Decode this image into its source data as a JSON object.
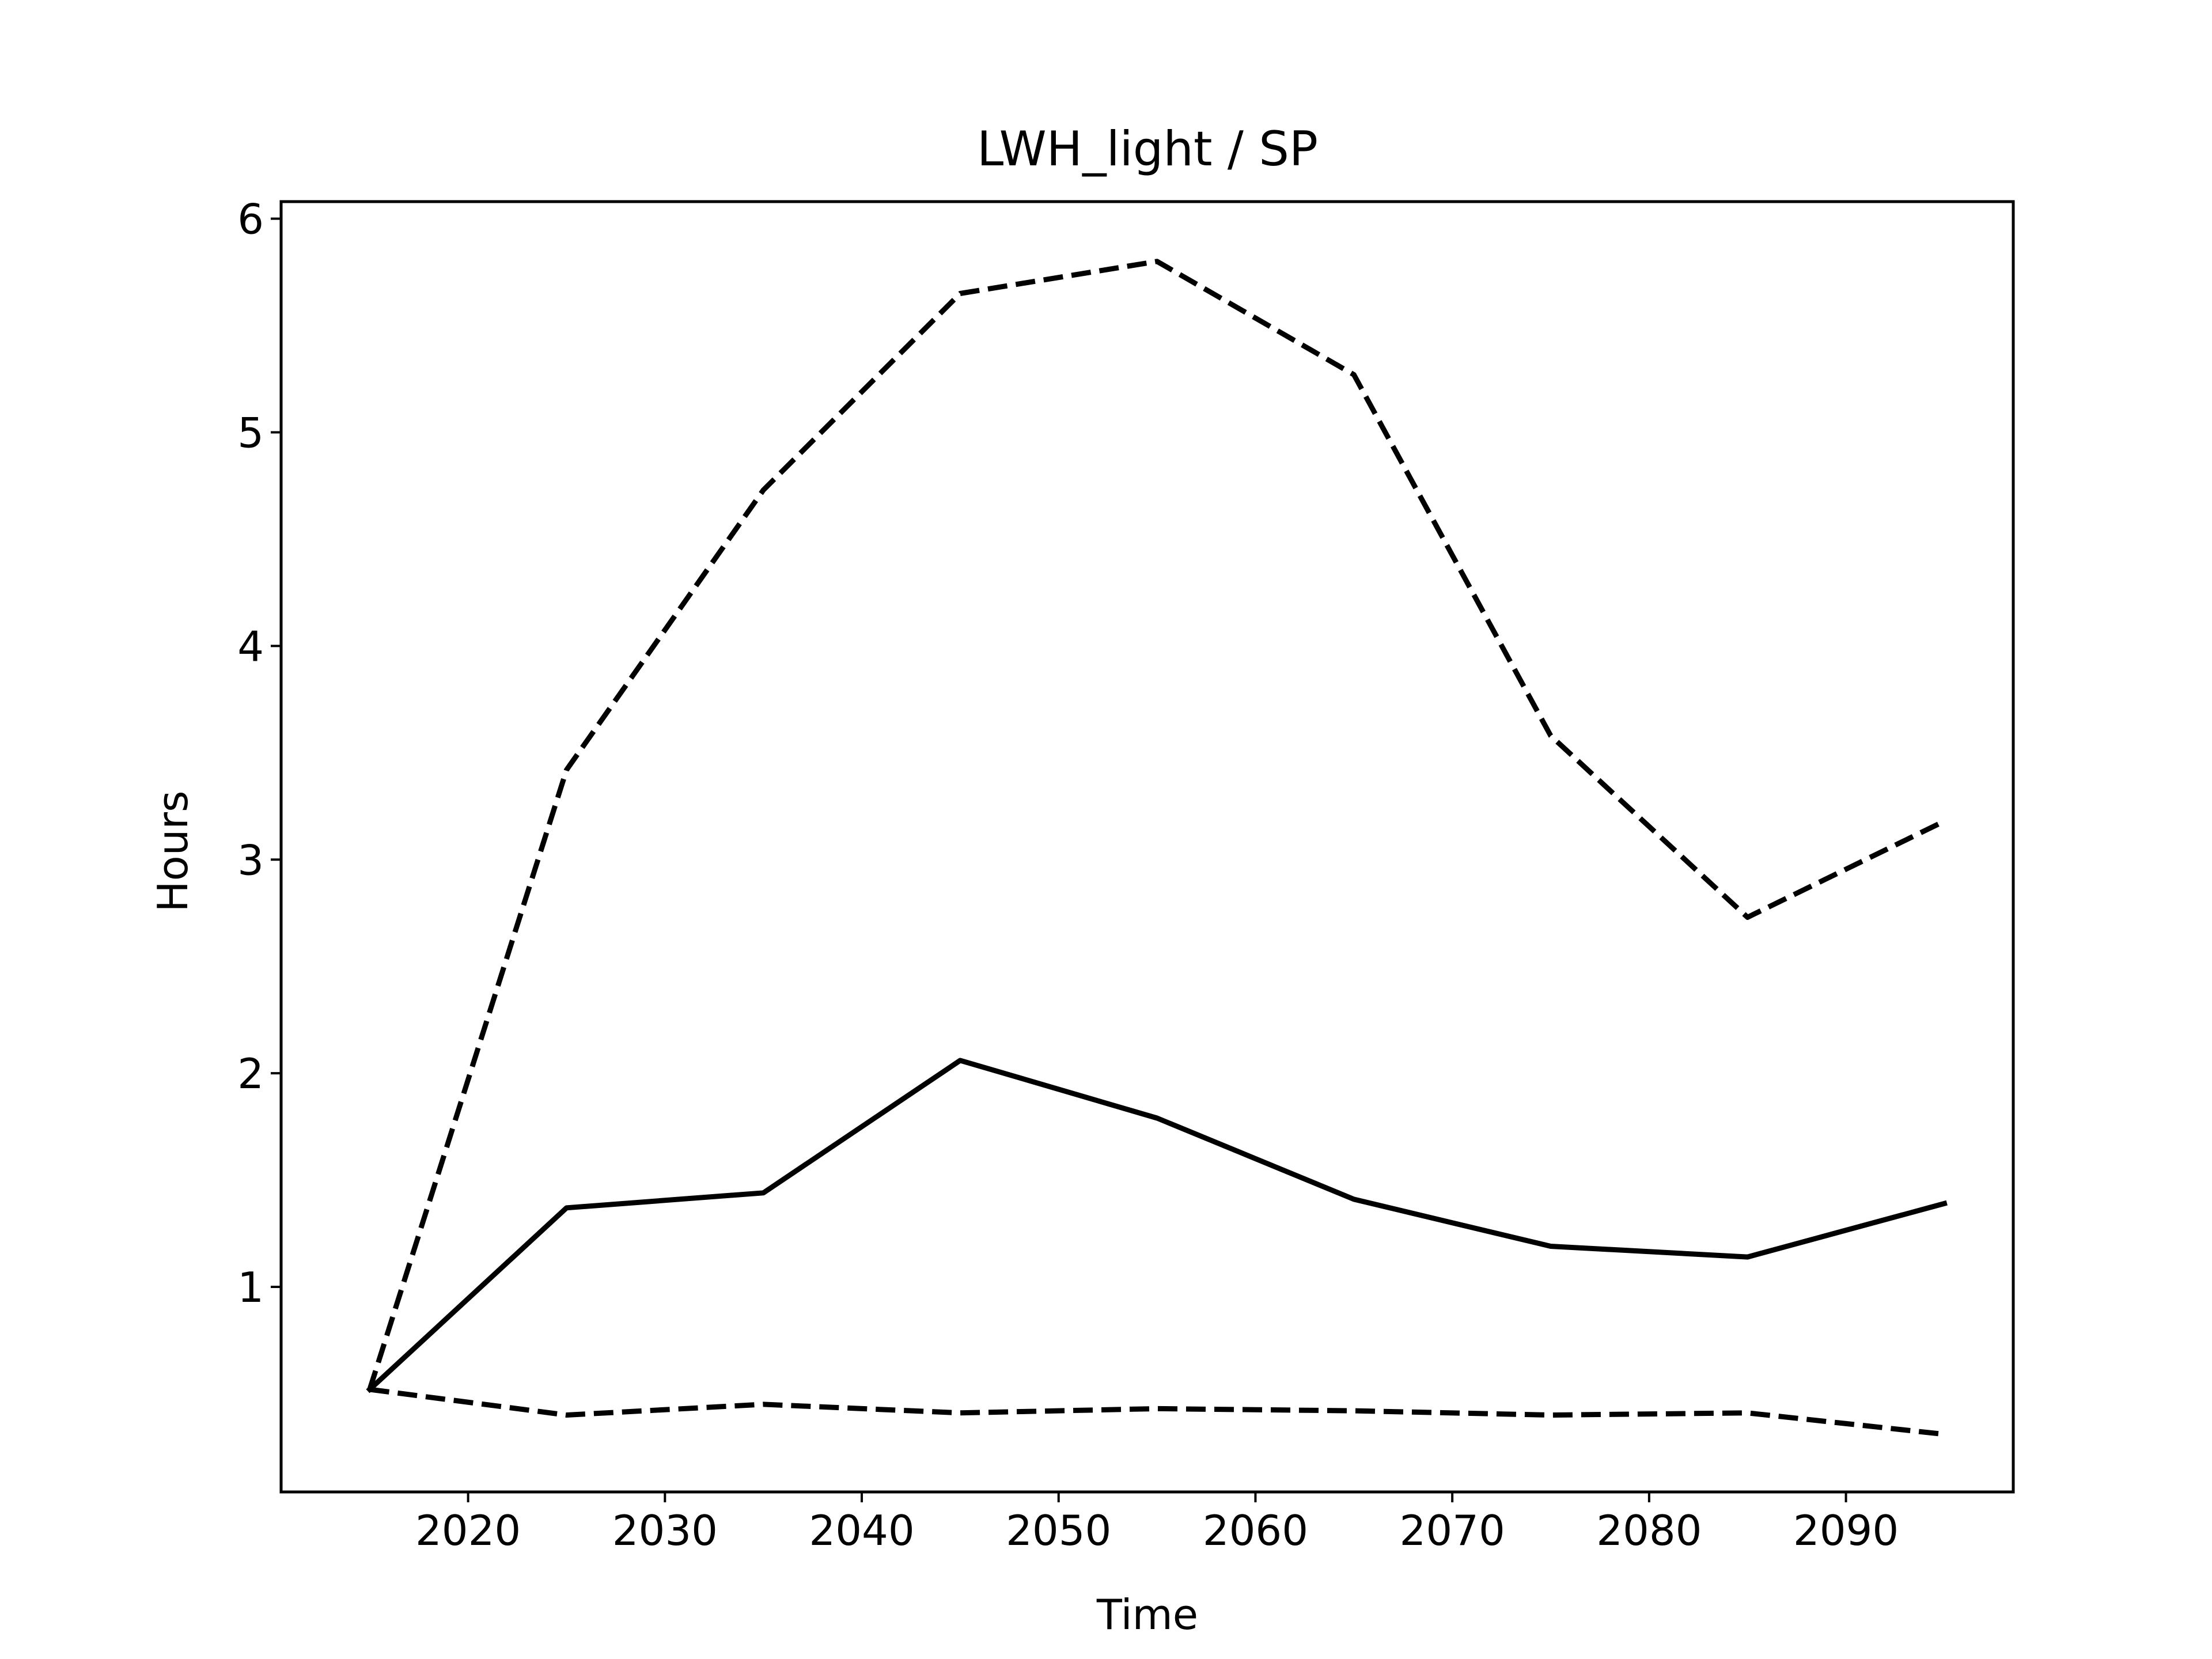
{
  "chart_data": {
    "type": "line",
    "title": "LWH_light / SP",
    "xlabel": "Time",
    "ylabel": "Hours",
    "xlim": [
      2010.5,
      2098.5
    ],
    "ylim": [
      0.04,
      6.08
    ],
    "xticks": [
      2020,
      2030,
      2040,
      2050,
      2060,
      2070,
      2080,
      2090
    ],
    "yticks": [
      1,
      2,
      3,
      4,
      5,
      6
    ],
    "grid": false,
    "x": [
      2015,
      2025,
      2035,
      2045,
      2055,
      2065,
      2075,
      2085,
      2095
    ],
    "series": [
      {
        "style": "solid",
        "color": "#000000",
        "values": [
          0.52,
          1.37,
          1.44,
          2.06,
          1.79,
          1.41,
          1.19,
          1.14,
          1.39
        ]
      },
      {
        "style": "dashed",
        "color": "#000000",
        "values": [
          0.52,
          3.42,
          4.73,
          5.65,
          5.8,
          5.27,
          3.58,
          2.73,
          3.18
        ]
      },
      {
        "style": "dashed",
        "color": "#000000",
        "values": [
          0.52,
          0.4,
          0.45,
          0.41,
          0.43,
          0.42,
          0.4,
          0.41,
          0.31
        ]
      }
    ]
  }
}
